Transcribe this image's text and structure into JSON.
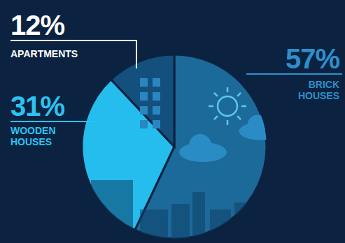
{
  "chart_data": {
    "type": "pie",
    "categories": [
      "BRICK HOUSES",
      "WOODEN HOUSES",
      "APARTMENTS"
    ],
    "values": [
      57,
      31,
      12
    ],
    "value_labels": [
      "57%",
      "31%",
      "12%"
    ],
    "colors": [
      "#1c6a9a",
      "#25bdee",
      "#14507e"
    ],
    "data_labels": true
  }
}
